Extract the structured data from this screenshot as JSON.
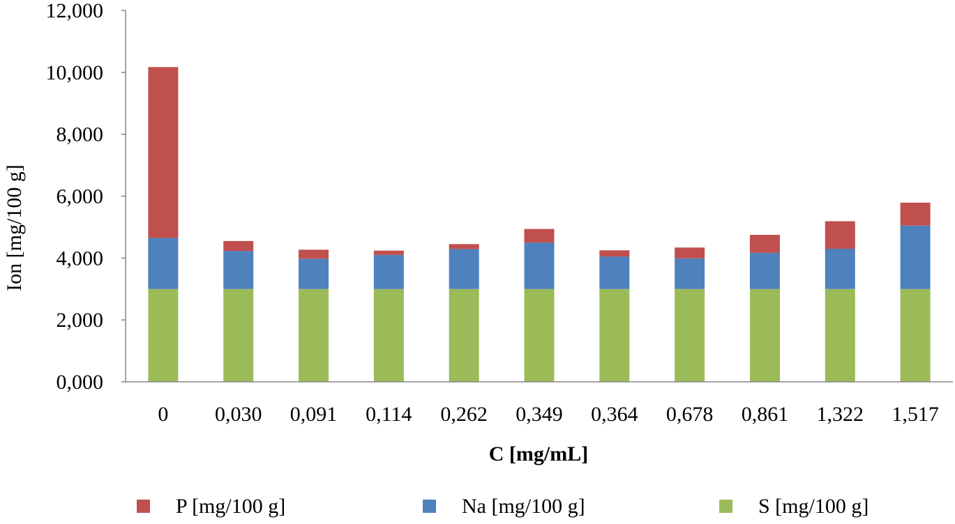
{
  "chart_data": {
    "type": "bar",
    "stacked": true,
    "title": "",
    "xlabel": "C [mg/mL]",
    "ylabel": "Ion [mg/100 g]",
    "ylim": [
      0,
      12000
    ],
    "yticks": [
      "0,000",
      "2,000",
      "4,000",
      "6,000",
      "8,000",
      "10,000",
      "12,000"
    ],
    "ytick_values": [
      0,
      2000,
      4000,
      6000,
      8000,
      10000,
      12000
    ],
    "grid": false,
    "legend_position": "bottom",
    "categories": [
      "0",
      "0,030",
      "0,091",
      "0,114",
      "0,262",
      "0,349",
      "0,364",
      "0,678",
      "0,861",
      "1,322",
      "1,517"
    ],
    "series": [
      {
        "name": "S [mg/100 g]",
        "color": "#9BBB59",
        "values": [
          3000,
          3000,
          3000,
          3000,
          3000,
          3000,
          3000,
          3000,
          3000,
          3000,
          3000
        ]
      },
      {
        "name": "Na [mg/100 g]",
        "color": "#4F81BD",
        "values": [
          1650,
          1230,
          980,
          1100,
          1290,
          1500,
          1050,
          990,
          1170,
          1300,
          2050
        ]
      },
      {
        "name": "P [mg/100 g]",
        "color": "#C0504D",
        "values": [
          5520,
          320,
          290,
          140,
          160,
          440,
          200,
          350,
          580,
          890,
          740
        ]
      }
    ],
    "legend_order": [
      "P [mg/100 g]",
      "Na [mg/100 g]",
      "S [mg/100 g]"
    ]
  }
}
